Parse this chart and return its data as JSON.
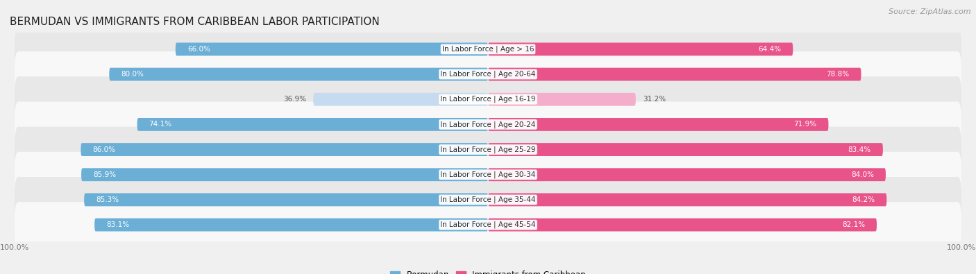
{
  "title": "BERMUDAN VS IMMIGRANTS FROM CARIBBEAN LABOR PARTICIPATION",
  "source": "Source: ZipAtlas.com",
  "categories": [
    "In Labor Force | Age > 16",
    "In Labor Force | Age 20-64",
    "In Labor Force | Age 16-19",
    "In Labor Force | Age 20-24",
    "In Labor Force | Age 25-29",
    "In Labor Force | Age 30-34",
    "In Labor Force | Age 35-44",
    "In Labor Force | Age 45-54"
  ],
  "bermudan_values": [
    66.0,
    80.0,
    36.9,
    74.1,
    86.0,
    85.9,
    85.3,
    83.1
  ],
  "immigrant_values": [
    64.4,
    78.8,
    31.2,
    71.9,
    83.4,
    84.0,
    84.2,
    82.1
  ],
  "bermudan_color_strong": "#6BAED6",
  "bermudan_color_light": "#C6DBEF",
  "immigrant_color_strong": "#E8538A",
  "immigrant_color_light": "#F4AECB",
  "threshold": 55.0,
  "max_value": 100.0,
  "background_color": "#f0f0f0",
  "row_bg_even": "#e8e8e8",
  "row_bg_odd": "#f8f8f8",
  "title_fontsize": 11,
  "label_fontsize": 7.5,
  "value_fontsize": 7.5,
  "legend_fontsize": 8.5,
  "source_fontsize": 8,
  "axis_tick_fontsize": 8
}
